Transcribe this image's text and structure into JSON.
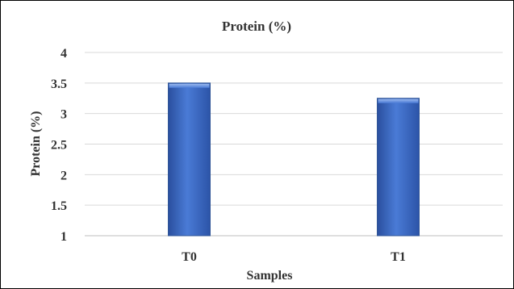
{
  "chart_data": {
    "type": "bar",
    "title": "Protein (%)",
    "xlabel": "Samples",
    "ylabel": "Protein (%)",
    "categories": [
      "T0",
      "T1"
    ],
    "values": [
      3.5,
      3.25
    ],
    "ylim": [
      1,
      4
    ],
    "yticks": [
      "1",
      "1.5",
      "2",
      "2.5",
      "3",
      "3.5",
      "4"
    ],
    "grid": true,
    "legend": "none",
    "bar_color": "#4472C4"
  }
}
